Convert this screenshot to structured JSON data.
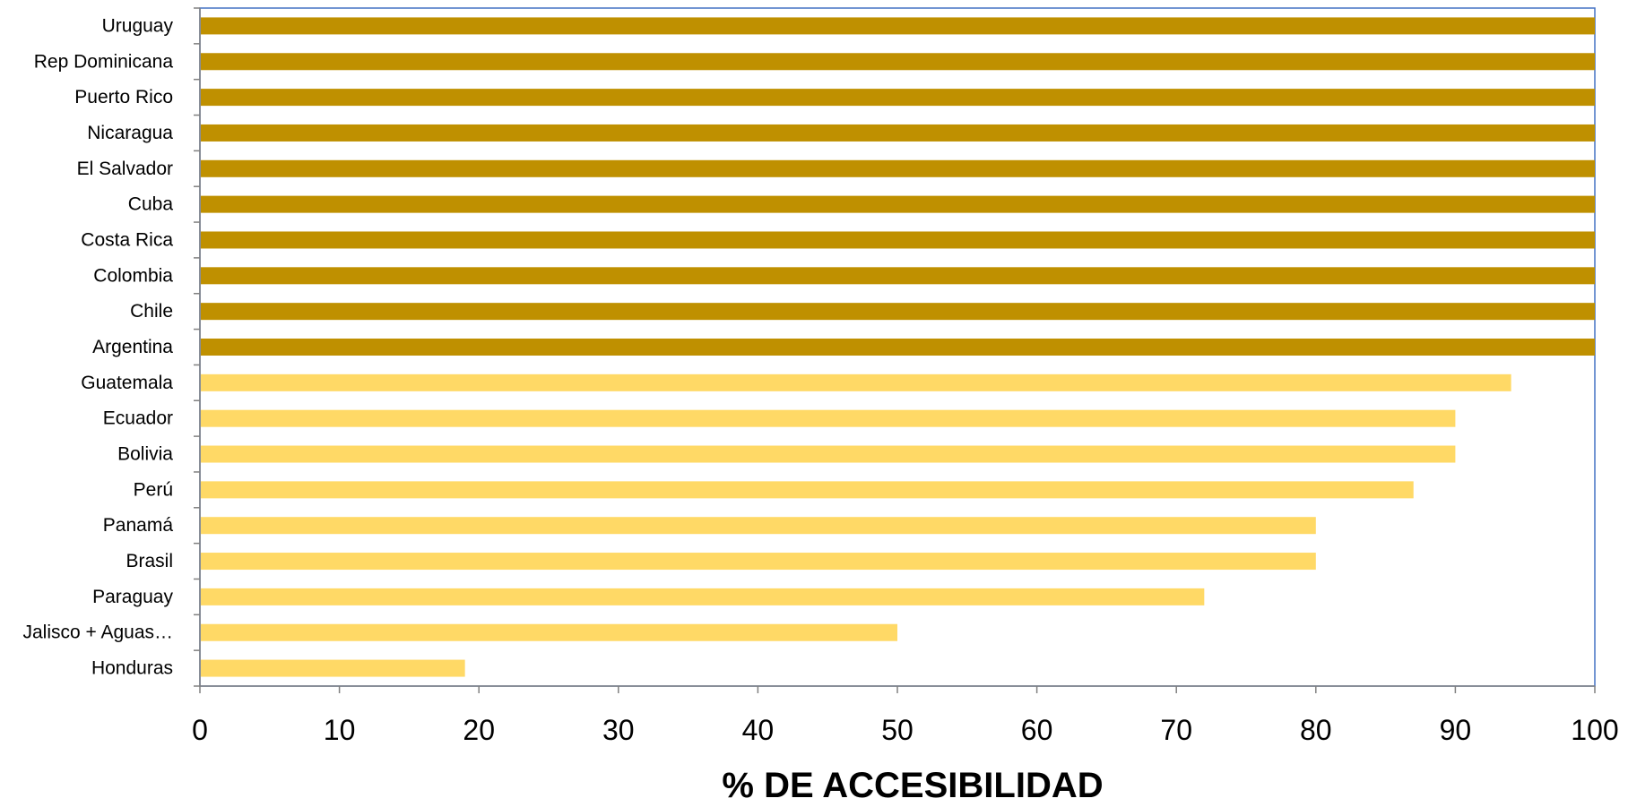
{
  "chart_data": {
    "type": "bar",
    "orientation": "horizontal",
    "categories": [
      "Uruguay",
      "Rep Dominicana",
      "Puerto Rico",
      "Nicaragua",
      "El Salvador",
      "Cuba",
      "Costa Rica",
      "Colombia",
      "Chile",
      "Argentina",
      "Guatemala",
      "Ecuador",
      "Bolivia",
      "Perú",
      "Panamá",
      "Brasil",
      "Paraguay",
      "Jalisco + Aguas…",
      "Honduras"
    ],
    "values": [
      100,
      100,
      100,
      100,
      100,
      100,
      100,
      100,
      100,
      100,
      94,
      90,
      90,
      87,
      80,
      80,
      72,
      50,
      19
    ],
    "bar_colors": [
      "#BF9000",
      "#BF9000",
      "#BF9000",
      "#BF9000",
      "#BF9000",
      "#BF9000",
      "#BF9000",
      "#BF9000",
      "#BF9000",
      "#BF9000",
      "#FFD966",
      "#FFD966",
      "#FFD966",
      "#FFD966",
      "#FFD966",
      "#FFD966",
      "#FFD966",
      "#FFD966",
      "#FFD966"
    ],
    "xlim": [
      0,
      100
    ],
    "xticks": [
      0,
      10,
      20,
      30,
      40,
      50,
      60,
      70,
      80,
      90,
      100
    ],
    "xlabel": "% DE ACCESIBILIDAD",
    "ylabel": "",
    "title": "",
    "grid": false,
    "legend": "none",
    "plot_border_color": "#4472C4",
    "axis_color": "#808080"
  }
}
